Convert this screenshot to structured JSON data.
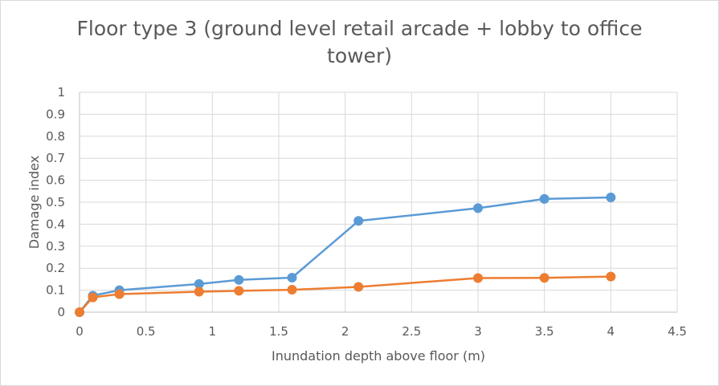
{
  "chart_data": {
    "type": "line",
    "title": "Floor type 3 (ground level retail arcade + lobby to office tower)",
    "xlabel": "Inundation depth above floor (m)",
    "ylabel": "Damage index",
    "xlim": [
      0,
      4.5
    ],
    "ylim": [
      0,
      1
    ],
    "x_ticks": [
      "0",
      "0.5",
      "1",
      "1.5",
      "2",
      "2.5",
      "3",
      "3.5",
      "4",
      "4.5"
    ],
    "y_ticks": [
      "0",
      "0.1",
      "0.2",
      "0.3",
      "0.4",
      "0.5",
      "0.6",
      "0.7",
      "0.8",
      "0.9",
      "1"
    ],
    "grid": true,
    "legend": false,
    "series": [
      {
        "color": "#5b9bd5",
        "x": [
          0,
          0.1,
          0.3,
          0.9,
          1.2,
          1.6,
          2.1,
          3,
          3.5,
          4
        ],
        "y": [
          0,
          0.075,
          0.1,
          0.128,
          0.147,
          0.157,
          0.415,
          0.473,
          0.515,
          0.522
        ]
      },
      {
        "color": "#ed7d31",
        "x": [
          0,
          0.1,
          0.3,
          0.9,
          1.2,
          1.6,
          2.1,
          3,
          3.5,
          4
        ],
        "y": [
          0,
          0.067,
          0.082,
          0.093,
          0.097,
          0.102,
          0.115,
          0.155,
          0.156,
          0.162
        ]
      }
    ]
  }
}
